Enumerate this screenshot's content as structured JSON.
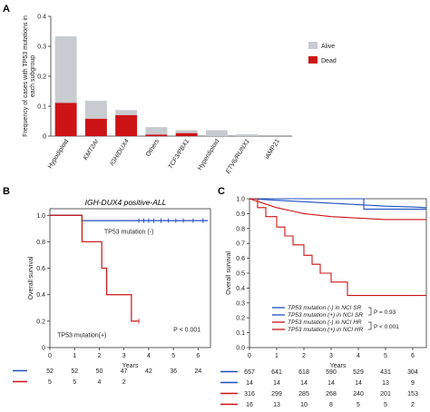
{
  "panels": {
    "a": "A",
    "b": "B",
    "c": "C"
  },
  "chart_data": [
    {
      "id": "A",
      "type": "bar",
      "stacked": true,
      "ylabel": [
        "Frequency of cases with TP53 mutations in",
        "each subgroup"
      ],
      "ylim": [
        0,
        0.4
      ],
      "yticks": [
        "0",
        "0.1",
        "0.2",
        "0.3",
        "0.4"
      ],
      "categories": [
        "Hypodiploid",
        "KMT2Ar",
        "IGH/DUX4",
        "Others",
        "TCF3/PBX1",
        "Hyperdiploid",
        "ETV6/RUNX1",
        "iAMP21"
      ],
      "category_italic": [
        false,
        true,
        true,
        false,
        true,
        false,
        true,
        false
      ],
      "series": [
        {
          "name": "Alive",
          "color": "#c8cbd0",
          "values": [
            0.222,
            0.06,
            0.017,
            0.025,
            0.01,
            0.02,
            0.006,
            0.0
          ]
        },
        {
          "name": "Dead",
          "color": "#cc1416",
          "values": [
            0.111,
            0.058,
            0.07,
            0.005,
            0.01,
            0.0,
            0.0,
            0.0
          ]
        }
      ],
      "legend_position": "right"
    },
    {
      "id": "B",
      "type": "line",
      "title": "IGH-DUX4 positive-ALL",
      "xlabel": "Years",
      "ylabel": "Overall survival",
      "xlim": [
        0,
        6.5
      ],
      "ylim": [
        0,
        1.05
      ],
      "xticks": [
        "0",
        "1",
        "2",
        "3",
        "4",
        "5",
        "6"
      ],
      "yticks": [
        "0",
        "0.2",
        "0.4",
        "0.6",
        "0.8",
        "1.0"
      ],
      "series": [
        {
          "name": "TP53 mutation (-)",
          "color": "#1f4fbf",
          "x": [
            0,
            1.3,
            1.3,
            6.4
          ],
          "y": [
            1.0,
            1.0,
            0.96,
            0.96
          ],
          "censor_x": [
            3.6,
            3.8,
            4.0,
            4.2,
            4.5,
            4.8,
            5.1,
            5.4,
            5.8,
            6.2
          ]
        },
        {
          "name": "TP53 mutation(+)",
          "color": "#cc1416",
          "x": [
            0,
            1.3,
            1.3,
            2.1,
            2.1,
            2.3,
            2.3,
            3.3,
            3.3,
            3.6
          ],
          "y": [
            1.0,
            1.0,
            0.8,
            0.8,
            0.6,
            0.6,
            0.4,
            0.4,
            0.2,
            0.2
          ],
          "censor_x": [
            3.6
          ]
        }
      ],
      "annotations": {
        "neg_label": "TP53 mutation (-)",
        "pos_label": "TP53 mutation(+)",
        "pvalue": "P < 0.001"
      },
      "risk_table": {
        "rows": [
          {
            "color": "#1f4fbf",
            "values": [
              "52",
              "52",
              "50",
              "47",
              "42",
              "36",
              "24"
            ]
          },
          {
            "color": "#cc1416",
            "values": [
              "5",
              "5",
              "4",
              "2",
              "",
              "",
              ""
            ]
          }
        ]
      }
    },
    {
      "id": "C",
      "type": "line",
      "xlabel": "Years",
      "ylabel": "Overall survival",
      "xlim": [
        0,
        6.5
      ],
      "ylim": [
        0,
        1.0
      ],
      "xticks": [
        "0",
        "1",
        "2",
        "3",
        "4",
        "5",
        "6"
      ],
      "yticks": [
        "0.0",
        "0.1",
        "0.2",
        "0.3",
        "0.4",
        "0.5",
        "0.6",
        "0.7",
        "0.8",
        "0.9",
        "1.0"
      ],
      "series": [
        {
          "name": "TP53 mutation (-) in NCI SR",
          "color": "#1f4fbf",
          "x": [
            0,
            1,
            2,
            3,
            4,
            5,
            6,
            6.5
          ],
          "y": [
            1.0,
            0.99,
            0.98,
            0.97,
            0.96,
            0.95,
            0.945,
            0.94
          ]
        },
        {
          "name": "TP53 mutation (+) in NCI SR",
          "color": "#1f4fbf",
          "x": [
            0,
            4.2,
            4.2,
            6.5
          ],
          "y": [
            1.0,
            1.0,
            0.93,
            0.93
          ]
        },
        {
          "name": "TP53 mutation (-) in NCI HR",
          "color": "#cc1416",
          "x": [
            0,
            0.5,
            1,
            1.5,
            2,
            2.5,
            3,
            4,
            5,
            6,
            6.5
          ],
          "y": [
            1.0,
            0.97,
            0.94,
            0.92,
            0.9,
            0.89,
            0.88,
            0.87,
            0.86,
            0.86,
            0.86
          ]
        },
        {
          "name": "TP53 mutation (+) in NCI HR",
          "color": "#cc1416",
          "x": [
            0,
            0.3,
            0.3,
            0.6,
            0.6,
            1.0,
            1.0,
            1.3,
            1.3,
            1.6,
            1.6,
            2.0,
            2.0,
            2.3,
            2.3,
            2.6,
            2.6,
            3.0,
            3.0,
            3.6,
            3.6,
            6.5
          ],
          "y": [
            1.0,
            1.0,
            0.94,
            0.94,
            0.88,
            0.88,
            0.81,
            0.81,
            0.75,
            0.75,
            0.69,
            0.69,
            0.62,
            0.62,
            0.56,
            0.56,
            0.5,
            0.5,
            0.44,
            0.44,
            0.35,
            0.35
          ]
        }
      ],
      "legend": {
        "entries": [
          {
            "label": "TP53 mutation (-) in NCI SR",
            "color": "#1f4fbf"
          },
          {
            "label": "TP53 mutation (+) in NCI SR",
            "color": "#1f4fbf"
          },
          {
            "label": "TP53 mutation (-) in NCI HR",
            "color": "#cc1416"
          },
          {
            "label": "TP53 mutation (+) in NCI HR",
            "color": "#cc1416"
          }
        ],
        "p_sr": "P = 0.93",
        "p_hr": "P < 0.001"
      },
      "risk_table": {
        "rows": [
          {
            "color": "#1f4fbf",
            "values": [
              "657",
              "641",
              "618",
              "590",
              "529",
              "431",
              "304"
            ]
          },
          {
            "color": "#1f4fbf",
            "values": [
              "14",
              "14",
              "14",
              "14",
              "14",
              "13",
              "9"
            ]
          },
          {
            "color": "#cc1416",
            "values": [
              "316",
              "299",
              "285",
              "268",
              "240",
              "201",
              "153"
            ]
          },
          {
            "color": "#cc1416",
            "values": [
              "16",
              "13",
              "10",
              "8",
              "5",
              "5",
              "2"
            ]
          }
        ]
      }
    }
  ]
}
